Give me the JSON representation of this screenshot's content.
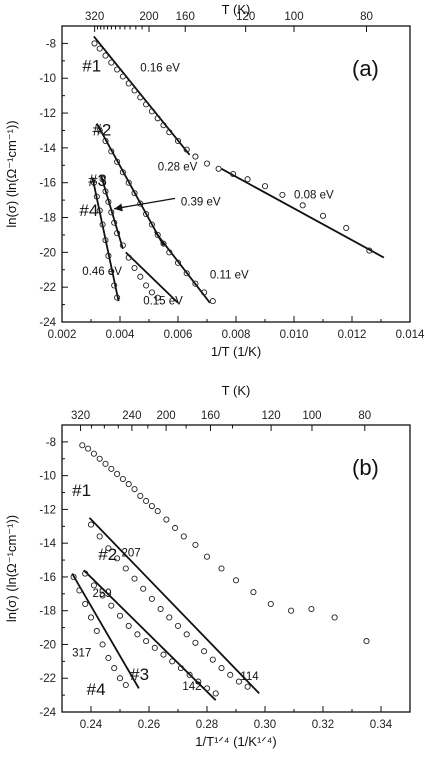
{
  "chart_data": [
    {
      "type": "scatter",
      "panel_label": "(a)",
      "xlabel": "1/T (1/K)",
      "ylabel": "ln(σ) (ln(Ω⁻¹cm⁻¹))",
      "top_axis_label": "T (K)",
      "xlim": [
        0.002,
        0.014
      ],
      "ylim": [
        -24,
        -7
      ],
      "x_ticks": [
        "0.002",
        "0.004",
        "0.006",
        "0.008",
        "0.010",
        "0.012",
        "0.014"
      ],
      "y_ticks": [
        "-8",
        "-10",
        "-12",
        "-14",
        "-16",
        "-18",
        "-20",
        "-22",
        "-24"
      ],
      "top_ticks": [
        "320",
        "200",
        "160",
        "120",
        "100",
        "80"
      ],
      "series": [
        {
          "name": "#1",
          "points": [
            [
              0.00312,
              -8.0
            ],
            [
              0.0033,
              -8.3
            ],
            [
              0.0035,
              -8.7
            ],
            [
              0.0037,
              -9.1
            ],
            [
              0.0039,
              -9.5
            ],
            [
              0.0041,
              -9.9
            ],
            [
              0.0043,
              -10.3
            ],
            [
              0.0045,
              -10.7
            ],
            [
              0.0047,
              -11.1
            ],
            [
              0.0049,
              -11.5
            ],
            [
              0.0051,
              -11.9
            ],
            [
              0.0053,
              -12.3
            ],
            [
              0.0055,
              -12.7
            ],
            [
              0.0057,
              -13.1
            ],
            [
              0.006,
              -13.6
            ],
            [
              0.0063,
              -14.1
            ],
            [
              0.0066,
              -14.5
            ],
            [
              0.007,
              -14.9
            ],
            [
              0.0074,
              -15.2
            ],
            [
              0.0079,
              -15.5
            ],
            [
              0.0084,
              -15.8
            ],
            [
              0.009,
              -16.2
            ],
            [
              0.0096,
              -16.7
            ],
            [
              0.0103,
              -17.3
            ],
            [
              0.011,
              -17.9
            ],
            [
              0.0118,
              -18.6
            ],
            [
              0.0126,
              -19.9
            ]
          ]
        },
        {
          "name": "#2",
          "points": [
            [
              0.0033,
              -13.0
            ],
            [
              0.0035,
              -13.6
            ],
            [
              0.0037,
              -14.2
            ],
            [
              0.0039,
              -14.8
            ],
            [
              0.0041,
              -15.4
            ],
            [
              0.0043,
              -16.0
            ],
            [
              0.0045,
              -16.6
            ],
            [
              0.0047,
              -17.2
            ],
            [
              0.0049,
              -17.8
            ],
            [
              0.0051,
              -18.4
            ],
            [
              0.0053,
              -19.0
            ],
            [
              0.0055,
              -19.5
            ],
            [
              0.0057,
              -20.0
            ],
            [
              0.006,
              -20.6
            ],
            [
              0.0063,
              -21.2
            ],
            [
              0.0066,
              -21.8
            ],
            [
              0.0069,
              -22.3
            ],
            [
              0.0072,
              -22.8
            ]
          ]
        },
        {
          "name": "#3",
          "points": [
            [
              0.0034,
              -15.8
            ],
            [
              0.0035,
              -16.5
            ],
            [
              0.0036,
              -17.1
            ],
            [
              0.0037,
              -17.7
            ],
            [
              0.0038,
              -18.3
            ],
            [
              0.0039,
              -18.9
            ],
            [
              0.0041,
              -19.6
            ],
            [
              0.0043,
              -20.3
            ],
            [
              0.0045,
              -20.9
            ],
            [
              0.0047,
              -21.4
            ],
            [
              0.0049,
              -21.9
            ],
            [
              0.0051,
              -22.3
            ],
            [
              0.0053,
              -22.6
            ]
          ]
        },
        {
          "name": "#4",
          "points": [
            [
              0.0031,
              -16.0
            ],
            [
              0.0032,
              -16.8
            ],
            [
              0.0033,
              -17.6
            ],
            [
              0.0034,
              -18.4
            ],
            [
              0.0035,
              -19.3
            ],
            [
              0.0036,
              -20.2
            ],
            [
              0.0037,
              -21.1
            ],
            [
              0.0038,
              -21.9
            ],
            [
              0.0039,
              -22.6
            ]
          ]
        }
      ],
      "fit_lines": [
        {
          "x1": 0.0031,
          "y1": -7.6,
          "x2": 0.0064,
          "y2": -14.4
        },
        {
          "x1": 0.0075,
          "y1": -15.2,
          "x2": 0.0131,
          "y2": -20.3
        },
        {
          "x1": 0.0032,
          "y1": -12.6,
          "x2": 0.0055,
          "y2": -19.6
        },
        {
          "x1": 0.0052,
          "y1": -18.8,
          "x2": 0.0071,
          "y2": -22.9
        },
        {
          "x1": 0.00335,
          "y1": -15.6,
          "x2": 0.0041,
          "y2": -19.8
        },
        {
          "x1": 0.0042,
          "y1": -20.0,
          "x2": 0.006,
          "y2": -22.9
        },
        {
          "x1": 0.00305,
          "y1": -15.7,
          "x2": 0.00395,
          "y2": -22.8
        }
      ],
      "annotations": [
        {
          "text": "#1",
          "x": 0.0027,
          "y": -9.6,
          "kind": "series"
        },
        {
          "text": "#2",
          "x": 0.00305,
          "y": -13.3,
          "kind": "series"
        },
        {
          "text": "#3",
          "x": 0.0029,
          "y": -16.2,
          "kind": "series"
        },
        {
          "text": "#4",
          "x": 0.0026,
          "y": -17.9,
          "kind": "series"
        },
        {
          "text": "0.16 eV",
          "x": 0.0047,
          "y": -9.6,
          "kind": "label"
        },
        {
          "text": "0.28 eV",
          "x": 0.0053,
          "y": -15.3,
          "kind": "label"
        },
        {
          "text": "0.39 eV",
          "x": 0.0061,
          "y": -17.3,
          "kind": "label"
        },
        {
          "text": "0.46 eV",
          "x": 0.0027,
          "y": -21.3,
          "kind": "label"
        },
        {
          "text": "0.15 eV",
          "x": 0.0048,
          "y": -23.0,
          "kind": "label"
        },
        {
          "text": "0.11 eV",
          "x": 0.0071,
          "y": -21.5,
          "kind": "label"
        },
        {
          "text": "0.08 eV",
          "x": 0.01,
          "y": -16.9,
          "kind": "label"
        }
      ],
      "arrow": {
        "from": [
          0.0059,
          -16.9
        ],
        "to": [
          0.0038,
          -17.5
        ]
      }
    },
    {
      "type": "scatter",
      "panel_label": "(b)",
      "xlabel": "1/T¹ᐟ⁴ (1/K¹ᐟ⁴)",
      "ylabel": "ln(σ) (ln(Ω⁻¹cm⁻¹))",
      "top_axis_label": "T (K)",
      "xlim": [
        0.23,
        0.35
      ],
      "ylim": [
        -24,
        -7
      ],
      "x_ticks": [
        "0.24",
        "0.26",
        "0.28",
        "0.30",
        "0.32",
        "0.34"
      ],
      "y_ticks": [
        "-8",
        "-10",
        "-12",
        "-14",
        "-16",
        "-18",
        "-20",
        "-22",
        "-24"
      ],
      "top_ticks": [
        "320",
        "240",
        "200",
        "160",
        "120",
        "100",
        "80"
      ],
      "series": [
        {
          "name": "#1",
          "points": [
            [
              0.237,
              -8.2
            ],
            [
              0.239,
              -8.4
            ],
            [
              0.241,
              -8.7
            ],
            [
              0.243,
              -9.0
            ],
            [
              0.245,
              -9.3
            ],
            [
              0.247,
              -9.6
            ],
            [
              0.249,
              -9.9
            ],
            [
              0.251,
              -10.2
            ],
            [
              0.253,
              -10.5
            ],
            [
              0.255,
              -10.8
            ],
            [
              0.257,
              -11.2
            ],
            [
              0.259,
              -11.5
            ],
            [
              0.261,
              -11.8
            ],
            [
              0.263,
              -12.1
            ],
            [
              0.266,
              -12.6
            ],
            [
              0.269,
              -13.1
            ],
            [
              0.272,
              -13.6
            ],
            [
              0.276,
              -14.1
            ],
            [
              0.28,
              -14.8
            ],
            [
              0.285,
              -15.5
            ],
            [
              0.29,
              -16.2
            ],
            [
              0.296,
              -16.9
            ],
            [
              0.302,
              -17.6
            ],
            [
              0.309,
              -18.0
            ],
            [
              0.316,
              -17.9
            ],
            [
              0.324,
              -18.4
            ],
            [
              0.335,
              -19.8
            ]
          ]
        },
        {
          "name": "#2",
          "points": [
            [
              0.24,
              -12.9
            ],
            [
              0.243,
              -13.6
            ],
            [
              0.246,
              -14.3
            ],
            [
              0.249,
              -14.9
            ],
            [
              0.252,
              -15.5
            ],
            [
              0.255,
              -16.1
            ],
            [
              0.258,
              -16.7
            ],
            [
              0.261,
              -17.3
            ],
            [
              0.264,
              -17.9
            ],
            [
              0.267,
              -18.4
            ],
            [
              0.27,
              -18.9
            ],
            [
              0.273,
              -19.4
            ],
            [
              0.276,
              -19.9
            ],
            [
              0.279,
              -20.4
            ],
            [
              0.282,
              -20.9
            ],
            [
              0.285,
              -21.4
            ],
            [
              0.288,
              -21.8
            ],
            [
              0.291,
              -22.2
            ],
            [
              0.294,
              -22.5
            ]
          ]
        },
        {
          "name": "#3",
          "points": [
            [
              0.238,
              -15.8
            ],
            [
              0.241,
              -16.5
            ],
            [
              0.244,
              -17.1
            ],
            [
              0.247,
              -17.7
            ],
            [
              0.25,
              -18.3
            ],
            [
              0.253,
              -18.9
            ],
            [
              0.256,
              -19.4
            ],
            [
              0.259,
              -19.8
            ],
            [
              0.262,
              -20.2
            ],
            [
              0.265,
              -20.6
            ],
            [
              0.268,
              -21.0
            ],
            [
              0.271,
              -21.4
            ],
            [
              0.274,
              -21.8
            ],
            [
              0.277,
              -22.2
            ],
            [
              0.28,
              -22.6
            ],
            [
              0.283,
              -22.9
            ]
          ]
        },
        {
          "name": "#4",
          "points": [
            [
              0.234,
              -16.0
            ],
            [
              0.236,
              -16.8
            ],
            [
              0.238,
              -17.6
            ],
            [
              0.24,
              -18.4
            ],
            [
              0.242,
              -19.2
            ],
            [
              0.244,
              -20.0
            ],
            [
              0.246,
              -20.8
            ],
            [
              0.248,
              -21.4
            ],
            [
              0.25,
              -22.0
            ],
            [
              0.252,
              -22.4
            ]
          ]
        }
      ],
      "fit_lines": [
        {
          "x1": 0.2395,
          "y1": -12.5,
          "x2": 0.298,
          "y2": -22.9
        },
        {
          "x1": 0.2375,
          "y1": -15.6,
          "x2": 0.283,
          "y2": -23.3
        },
        {
          "x1": 0.2335,
          "y1": -15.8,
          "x2": 0.2565,
          "y2": -22.6
        }
      ],
      "annotations": [
        {
          "text": "#1",
          "x": 0.2335,
          "y": -11.2,
          "kind": "series"
        },
        {
          "text": "#2",
          "x": 0.2425,
          "y": -15.0,
          "kind": "series"
        },
        {
          "text": "#3",
          "x": 0.2535,
          "y": -22.1,
          "kind": "series"
        },
        {
          "text": "#4",
          "x": 0.2385,
          "y": -23.0,
          "kind": "series"
        },
        {
          "text": "207",
          "x": 0.2505,
          "y": -14.8,
          "kind": "label"
        },
        {
          "text": "259",
          "x": 0.2405,
          "y": -17.2,
          "kind": "label"
        },
        {
          "text": "317",
          "x": 0.2335,
          "y": -20.7,
          "kind": "label"
        },
        {
          "text": "142",
          "x": 0.2715,
          "y": -22.7,
          "kind": "label"
        },
        {
          "text": "114",
          "x": 0.2915,
          "y": -22.1,
          "kind": "label"
        }
      ]
    }
  ]
}
